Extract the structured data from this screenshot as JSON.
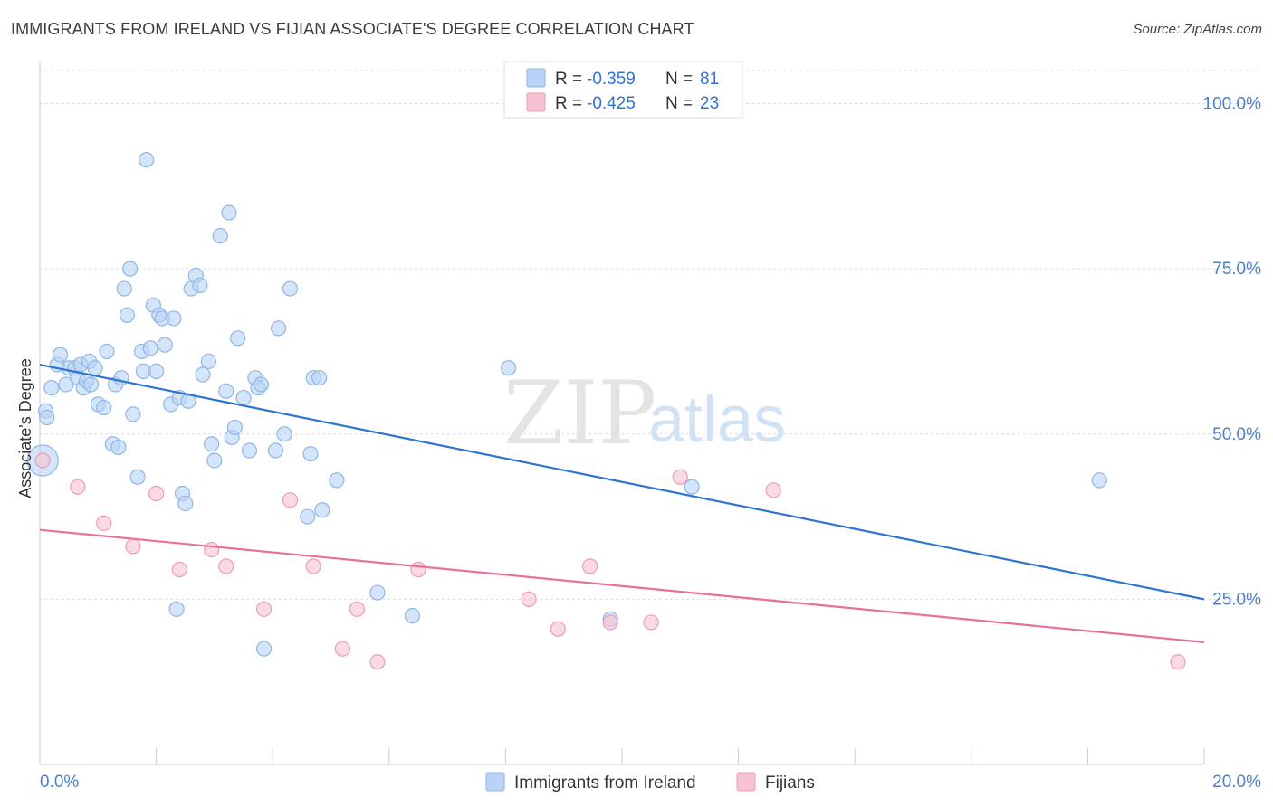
{
  "title": "IMMIGRANTS FROM IRELAND VS FIJIAN ASSOCIATE'S DEGREE CORRELATION CHART",
  "source": "Source: ZipAtlas.com",
  "watermark": {
    "zip": "ZIP",
    "atlas": "atlas"
  },
  "colors": {
    "blue_fill": "#b8d3f5",
    "blue_stroke": "#8fb6e6",
    "blue_line": "#2f74d0",
    "pink_fill": "#f7c3d3",
    "pink_stroke": "#ee9bb6",
    "pink_line": "#e8709a",
    "tick_label": "#4a7fd0",
    "grid": "#dddddd"
  },
  "legend": {
    "rows": [
      {
        "r_label": "R = ",
        "r_value": "-0.359",
        "n_label": "N = ",
        "n_value": "81"
      },
      {
        "r_label": "R = ",
        "r_value": "-0.425",
        "n_label": "N = ",
        "n_value": "23"
      }
    ]
  },
  "bottom_legend": [
    "Immigrants from Ireland",
    "Fijians"
  ],
  "chart_data": {
    "type": "scatter",
    "title": "IMMIGRANTS FROM IRELAND VS FIJIAN ASSOCIATE'S DEGREE CORRELATION CHART",
    "xlabel": "",
    "ylabel": "Associate's Degree",
    "xlim": [
      0,
      20
    ],
    "ylim": [
      0,
      105
    ],
    "x_tick_labels": [
      "0.0%",
      "20.0%"
    ],
    "y_ticks": [
      25,
      50,
      75,
      100
    ],
    "y_tick_labels": [
      "25.0%",
      "50.0%",
      "75.0%",
      "100.0%"
    ],
    "grid": true,
    "legend_position": "top-center",
    "series": [
      {
        "name": "Immigrants from Ireland",
        "R": -0.359,
        "N": 81,
        "trend": {
          "x": [
            0,
            20
          ],
          "y": [
            60.5,
            25.0
          ]
        },
        "points": [
          {
            "x": 0.05,
            "y": 46.0,
            "big": true
          },
          {
            "x": 0.1,
            "y": 53.5
          },
          {
            "x": 0.12,
            "y": 52.5
          },
          {
            "x": 0.2,
            "y": 57.0
          },
          {
            "x": 0.3,
            "y": 60.5
          },
          {
            "x": 0.35,
            "y": 62.0
          },
          {
            "x": 0.45,
            "y": 57.5
          },
          {
            "x": 0.5,
            "y": 60.0
          },
          {
            "x": 0.6,
            "y": 60.0
          },
          {
            "x": 0.65,
            "y": 58.5
          },
          {
            "x": 0.7,
            "y": 60.5
          },
          {
            "x": 0.75,
            "y": 57.0
          },
          {
            "x": 0.8,
            "y": 58.0
          },
          {
            "x": 0.85,
            "y": 61.0
          },
          {
            "x": 0.88,
            "y": 57.5
          },
          {
            "x": 0.95,
            "y": 60.0
          },
          {
            "x": 1.0,
            "y": 54.5
          },
          {
            "x": 1.1,
            "y": 54.0
          },
          {
            "x": 1.15,
            "y": 62.5
          },
          {
            "x": 1.25,
            "y": 48.5
          },
          {
            "x": 1.3,
            "y": 57.5
          },
          {
            "x": 1.35,
            "y": 48.0
          },
          {
            "x": 1.4,
            "y": 58.5
          },
          {
            "x": 1.45,
            "y": 72.0
          },
          {
            "x": 1.5,
            "y": 68.0
          },
          {
            "x": 1.55,
            "y": 75.0
          },
          {
            "x": 1.6,
            "y": 53.0
          },
          {
            "x": 1.68,
            "y": 43.5
          },
          {
            "x": 1.75,
            "y": 62.5
          },
          {
            "x": 1.78,
            "y": 59.5
          },
          {
            "x": 1.83,
            "y": 91.5
          },
          {
            "x": 1.9,
            "y": 63.0
          },
          {
            "x": 1.95,
            "y": 69.5
          },
          {
            "x": 2.0,
            "y": 59.5
          },
          {
            "x": 2.05,
            "y": 68.0
          },
          {
            "x": 2.1,
            "y": 67.5
          },
          {
            "x": 2.15,
            "y": 63.5
          },
          {
            "x": 2.25,
            "y": 54.5
          },
          {
            "x": 2.3,
            "y": 67.5
          },
          {
            "x": 2.35,
            "y": 23.5
          },
          {
            "x": 2.4,
            "y": 55.5
          },
          {
            "x": 2.45,
            "y": 41.0
          },
          {
            "x": 2.5,
            "y": 39.5
          },
          {
            "x": 2.55,
            "y": 55.0
          },
          {
            "x": 2.6,
            "y": 72.0
          },
          {
            "x": 2.68,
            "y": 74.0
          },
          {
            "x": 2.75,
            "y": 72.5
          },
          {
            "x": 2.8,
            "y": 59.0
          },
          {
            "x": 2.9,
            "y": 61.0
          },
          {
            "x": 2.95,
            "y": 48.5
          },
          {
            "x": 3.0,
            "y": 46.0
          },
          {
            "x": 3.1,
            "y": 80.0
          },
          {
            "x": 3.2,
            "y": 56.5
          },
          {
            "x": 3.25,
            "y": 83.5
          },
          {
            "x": 3.3,
            "y": 49.5
          },
          {
            "x": 3.35,
            "y": 51.0
          },
          {
            "x": 3.4,
            "y": 64.5
          },
          {
            "x": 3.5,
            "y": 55.5
          },
          {
            "x": 3.6,
            "y": 47.5
          },
          {
            "x": 3.7,
            "y": 58.5
          },
          {
            "x": 3.75,
            "y": 57.0
          },
          {
            "x": 3.8,
            "y": 57.5
          },
          {
            "x": 3.85,
            "y": 17.5
          },
          {
            "x": 4.05,
            "y": 47.5
          },
          {
            "x": 4.1,
            "y": 66.0
          },
          {
            "x": 4.2,
            "y": 50.0
          },
          {
            "x": 4.3,
            "y": 72.0
          },
          {
            "x": 4.6,
            "y": 37.5
          },
          {
            "x": 4.65,
            "y": 47.0
          },
          {
            "x": 4.7,
            "y": 58.5
          },
          {
            "x": 4.8,
            "y": 58.5
          },
          {
            "x": 4.85,
            "y": 38.5
          },
          {
            "x": 5.1,
            "y": 43.0
          },
          {
            "x": 5.8,
            "y": 26.0
          },
          {
            "x": 6.4,
            "y": 22.5
          },
          {
            "x": 8.05,
            "y": 60.0
          },
          {
            "x": 9.8,
            "y": 22.0
          },
          {
            "x": 11.2,
            "y": 42.0
          },
          {
            "x": 18.2,
            "y": 43.0
          }
        ]
      },
      {
        "name": "Fijians",
        "R": -0.425,
        "N": 23,
        "trend": {
          "x": [
            0,
            20
          ],
          "y": [
            35.5,
            18.5
          ]
        },
        "points": [
          {
            "x": 0.05,
            "y": 46.0
          },
          {
            "x": 0.65,
            "y": 42.0
          },
          {
            "x": 1.1,
            "y": 36.5
          },
          {
            "x": 1.6,
            "y": 33.0
          },
          {
            "x": 2.0,
            "y": 41.0
          },
          {
            "x": 2.4,
            "y": 29.5
          },
          {
            "x": 2.95,
            "y": 32.5
          },
          {
            "x": 3.2,
            "y": 30.0
          },
          {
            "x": 3.85,
            "y": 23.5
          },
          {
            "x": 4.3,
            "y": 40.0
          },
          {
            "x": 4.7,
            "y": 30.0
          },
          {
            "x": 5.2,
            "y": 17.5
          },
          {
            "x": 5.45,
            "y": 23.5
          },
          {
            "x": 5.8,
            "y": 15.5
          },
          {
            "x": 6.5,
            "y": 29.5
          },
          {
            "x": 8.4,
            "y": 25.0
          },
          {
            "x": 8.9,
            "y": 20.5
          },
          {
            "x": 9.45,
            "y": 30.0
          },
          {
            "x": 9.8,
            "y": 21.5
          },
          {
            "x": 10.5,
            "y": 21.5
          },
          {
            "x": 11.0,
            "y": 43.5
          },
          {
            "x": 12.6,
            "y": 41.5
          },
          {
            "x": 19.55,
            "y": 15.5
          }
        ]
      }
    ]
  }
}
